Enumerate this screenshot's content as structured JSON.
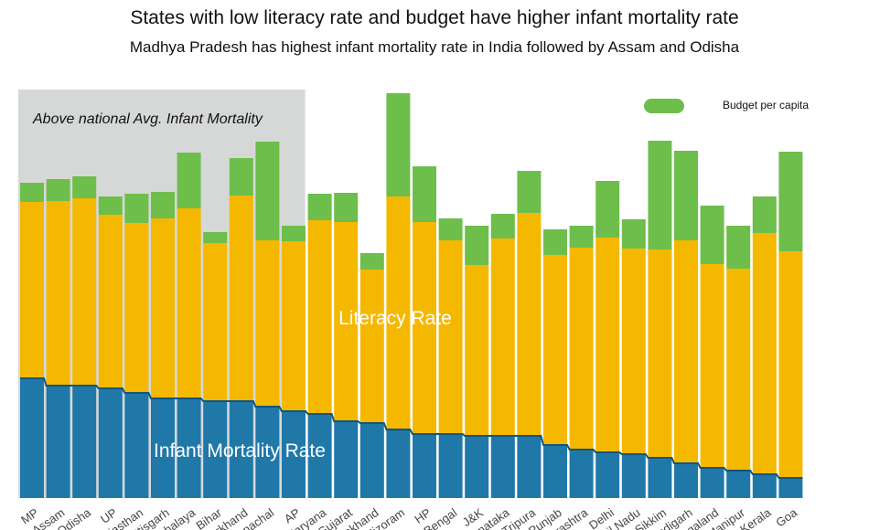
{
  "chart_data": {
    "type": "bar",
    "stacked": true,
    "title": "States with low literacy rate and budget have higher infant mortality rate",
    "subtitle": "Madhya Pradesh has highest infant mortality rate in India followed by Assam and Odisha",
    "highlight_label": "Above national Avg. Infant Mortality",
    "highlight_count": 11,
    "grid": false,
    "legend_position": "top-right",
    "categories": [
      "MP",
      "Assam",
      "Odisha",
      "UP",
      "Rajasthan",
      "Chhattisgarh",
      "Meghalaya",
      "Bihar",
      "Jharkhand",
      "Arunachal",
      "AP",
      "Haryana",
      "Gujarat",
      "Uttarakhand",
      "Mizoram",
      "HP",
      "W Bengal",
      "J&K",
      "Karnataka",
      "Tripura",
      "Punjab",
      "Maharashtra",
      "Delhi",
      "Tamil Nadu",
      "Sikkim",
      "Chandigarh",
      "Nagaland",
      "Manipur",
      "Kerala",
      "Goa"
    ],
    "series": [
      {
        "name": "Infant Mortality Rate",
        "color": "#1f78a8",
        "label": "Infant Mortality Rate",
        "values": [
          131,
          123,
          123,
          120,
          115,
          109,
          109,
          106,
          106,
          100,
          95,
          92,
          84,
          82,
          75,
          70,
          70,
          68,
          68,
          68,
          58,
          53,
          50,
          48,
          44,
          38,
          33,
          30,
          26,
          22
        ]
      },
      {
        "name": "Literacy Rate",
        "color": "#f5b800",
        "label": "Literacy Rate",
        "values": [
          193,
          202,
          205,
          190,
          186,
          197,
          208,
          173,
          225,
          182,
          186,
          212,
          218,
          168,
          255,
          232,
          212,
          187,
          216,
          244,
          208,
          221,
          235,
          225,
          228,
          244,
          223,
          221,
          264,
          248
        ]
      },
      {
        "name": "Budget per capita",
        "color": "#6dbe4b",
        "label": "Budget per capita",
        "values": [
          21,
          24,
          24,
          20,
          32,
          29,
          61,
          12,
          41,
          108,
          17,
          29,
          32,
          18,
          113,
          61,
          24,
          43,
          27,
          46,
          28,
          24,
          62,
          32,
          119,
          98,
          64,
          47,
          40,
          109
        ]
      }
    ]
  }
}
